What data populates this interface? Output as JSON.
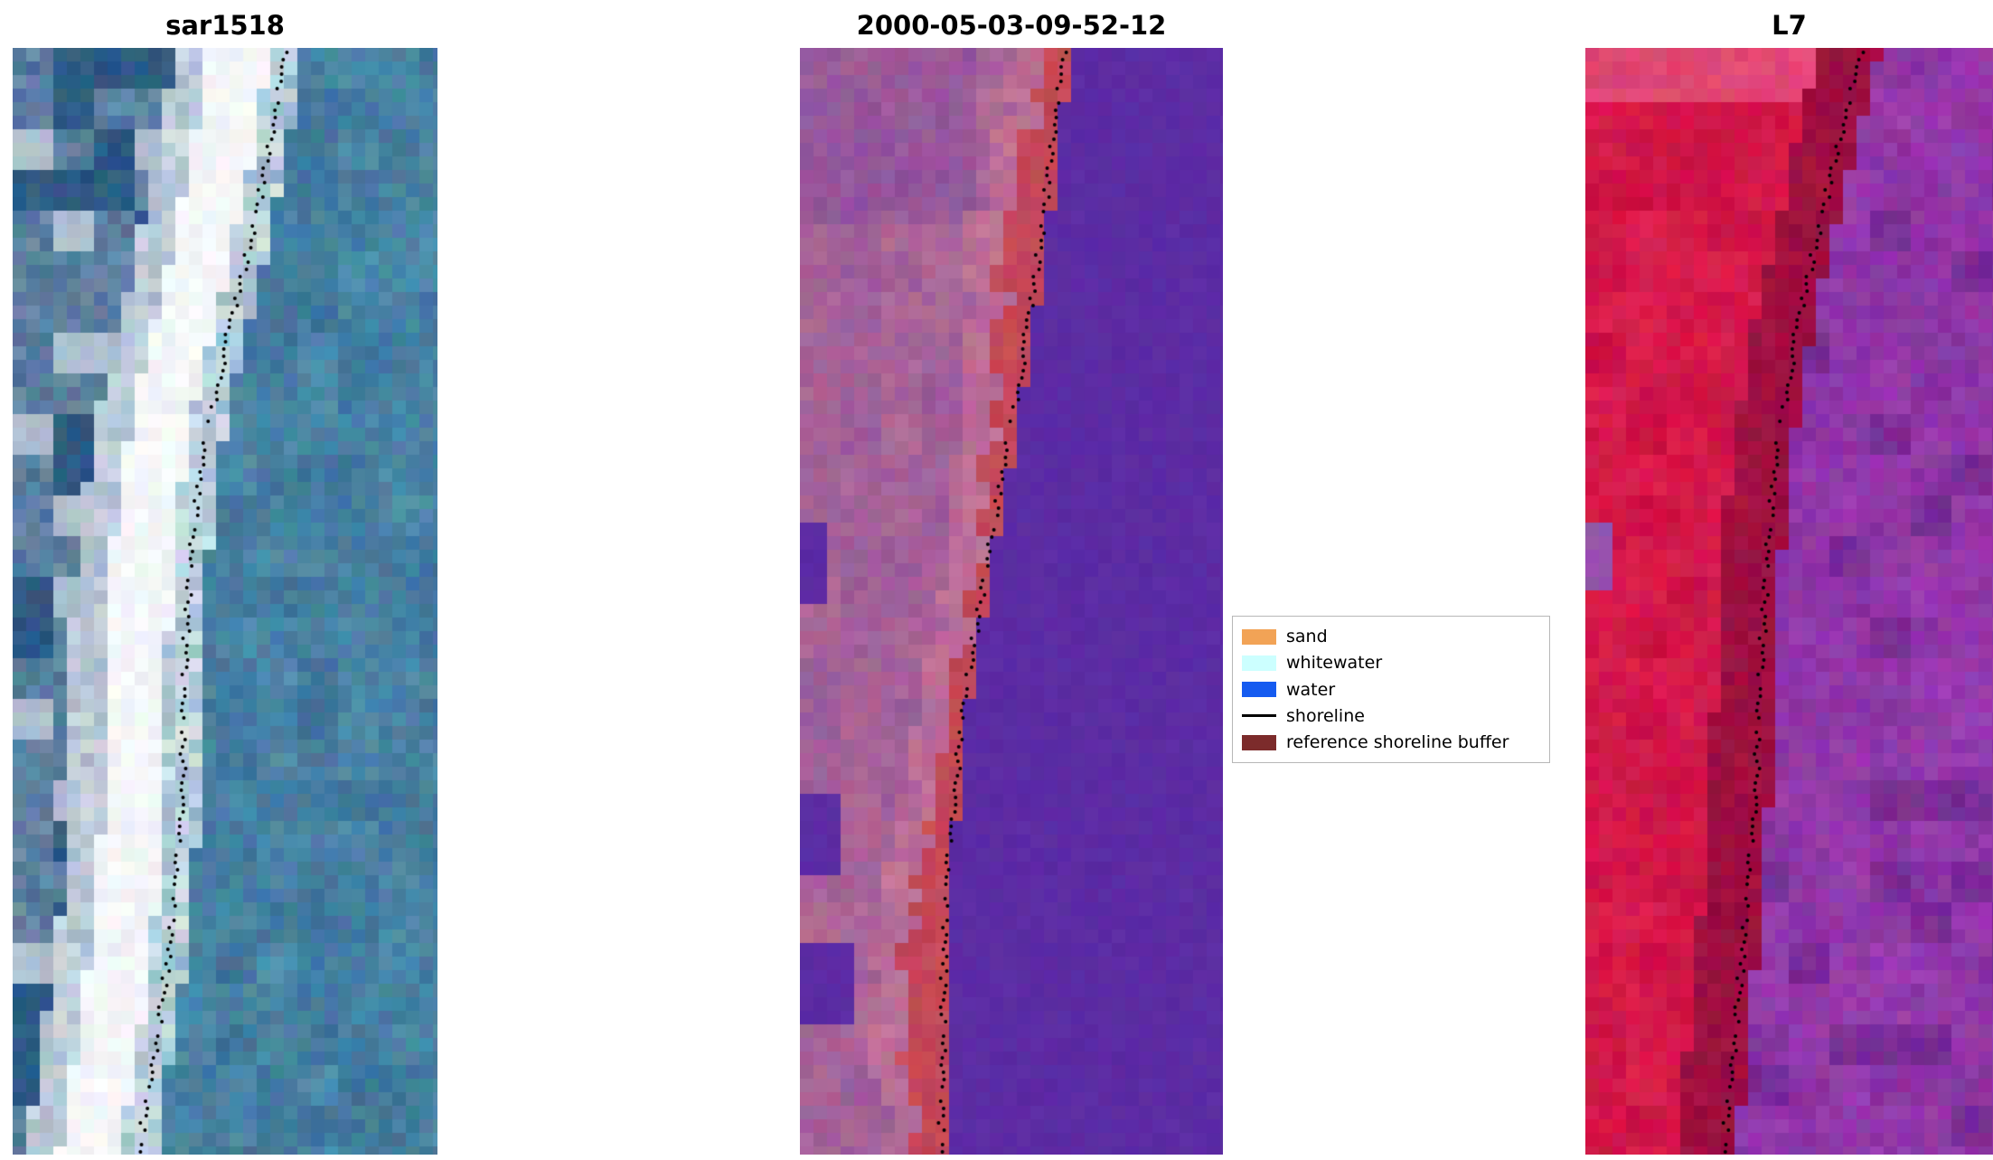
{
  "figure": {
    "background": "#ffffff",
    "panels": [
      {
        "title": "sar1518",
        "palette": {
          "water": "#4f8cab",
          "beach": "#eef2f5",
          "inland": "#6e8dab",
          "shadow": "#2e5a85",
          "shoreline_dots": "#000000"
        }
      },
      {
        "title": "2000-05-03-09-52-12",
        "palette": {
          "water": "#5c2ca4",
          "buffer": "#c44958",
          "land": "#b06a96",
          "land_dark": "#8a4f9e",
          "shoreline_dots": "#000000"
        }
      },
      {
        "title": "L7",
        "palette": {
          "vegetation": "#cc1244",
          "nearshore": "#961040",
          "water": "#9a3cb0",
          "water_dark": "#7a2d96",
          "shoreline_dots": "#000000"
        }
      }
    ],
    "legend": {
      "items": [
        {
          "label": "sand",
          "color": "#f2a356",
          "type": "patch"
        },
        {
          "label": "whitewater",
          "color": "#ccffff",
          "type": "patch"
        },
        {
          "label": "water",
          "color": "#155bf0",
          "type": "patch"
        },
        {
          "label": "shoreline",
          "color": "#000000",
          "type": "line"
        },
        {
          "label": "reference shoreline buffer",
          "color": "#7c2b2b",
          "type": "patch"
        }
      ]
    }
  }
}
